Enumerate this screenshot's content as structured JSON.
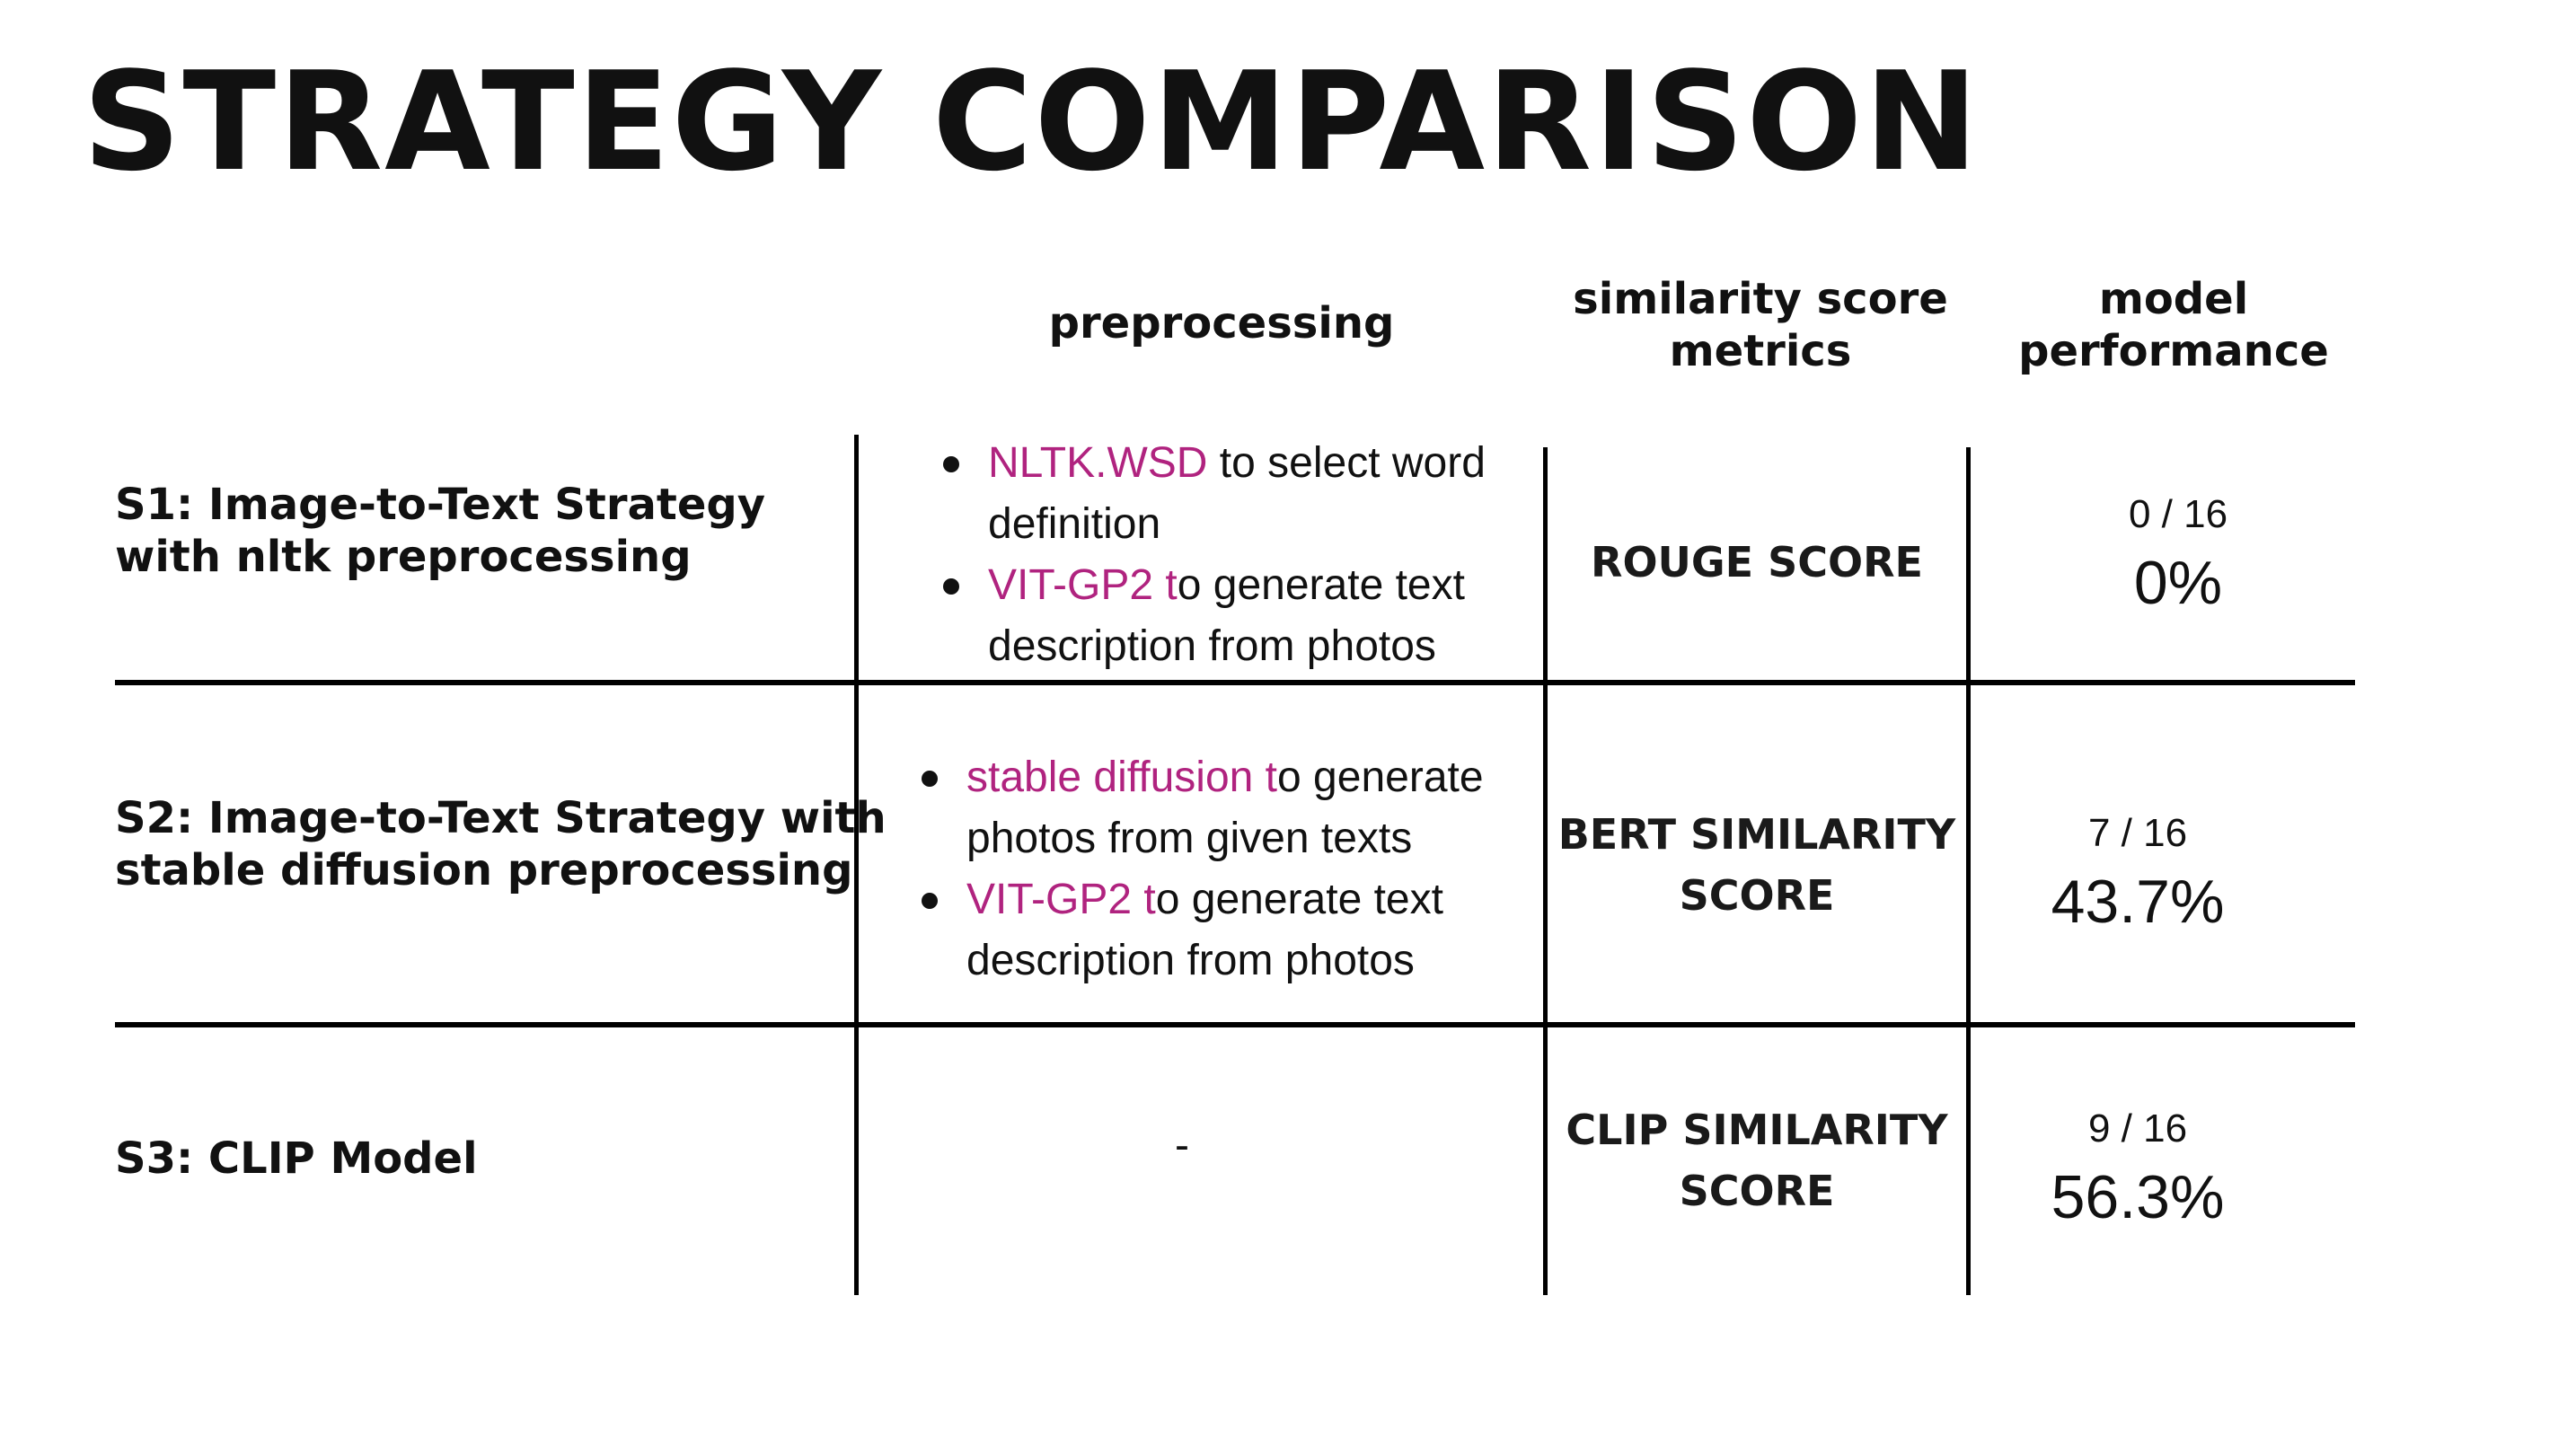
{
  "title": "STRATEGY COMPARISON",
  "headers": {
    "preprocessing": "preprocessing",
    "similarity": [
      "similarity score",
      "metrics"
    ],
    "performance": [
      "model",
      "performance"
    ]
  },
  "rows": [
    {
      "label": [
        "S1: Image-to-Text Strategy",
        "with nltk preprocessing"
      ],
      "bullets": [
        {
          "lines": [
            {
              "hl": "NLTK.WSD",
              "text": " to select word"
            },
            {
              "hl": "",
              "text": "definition"
            }
          ]
        },
        {
          "lines": [
            {
              "hl": "VIT-GP2 t",
              "text": "o generate text"
            },
            {
              "hl": "",
              "text": "description from photos"
            }
          ]
        }
      ],
      "metric": [
        "ROUGE SCORE"
      ],
      "count": "0 / 16",
      "pct": "0%"
    },
    {
      "label": [
        "S2: Image-to-Text Strategy with",
        "stable diffusion preprocessing"
      ],
      "bullets": [
        {
          "lines": [
            {
              "hl": "stable diffusion t",
              "text": "o generate"
            },
            {
              "hl": "",
              "text": "photos from given texts"
            }
          ]
        },
        {
          "lines": [
            {
              "hl": "VIT-GP2 t",
              "text": "o generate text"
            },
            {
              "hl": "",
              "text": "description from photos"
            }
          ]
        }
      ],
      "metric": [
        "BERT SIMILARITY",
        "SCORE"
      ],
      "count": "7 / 16",
      "pct": "43.7%"
    },
    {
      "label": [
        "S3: CLIP Model"
      ],
      "preprocessing": "-",
      "metric": [
        "CLIP  SIMILARITY",
        "SCORE"
      ],
      "count": "9 / 16",
      "pct": "56.3%"
    }
  ],
  "colors": {
    "highlight": "#b0237f",
    "text": "#111111",
    "rule": "#000000"
  }
}
